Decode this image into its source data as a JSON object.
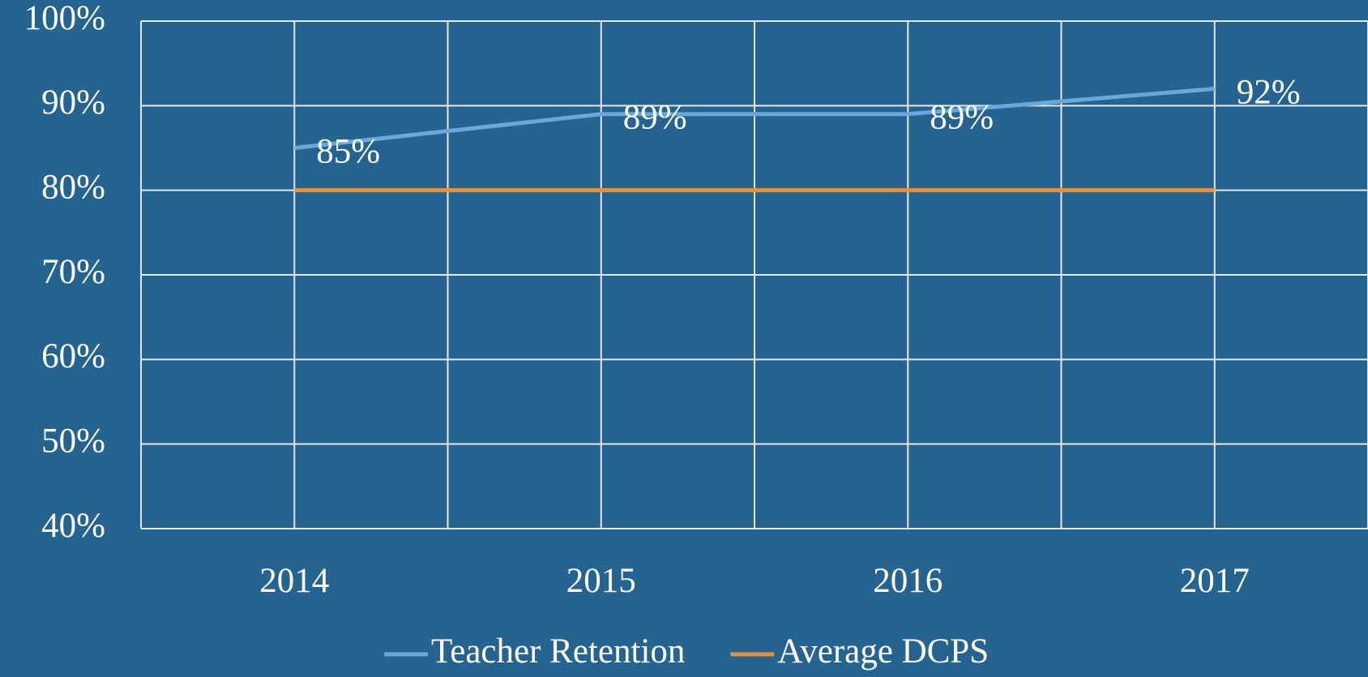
{
  "chart_data": {
    "type": "line",
    "categories": [
      "2014",
      "2015",
      "2016",
      "2017"
    ],
    "series": [
      {
        "name": "Teacher Retention",
        "color": "#6aa8dc",
        "values": [
          85,
          89,
          89,
          92
        ],
        "value_labels": [
          "85%",
          "89%",
          "89%",
          "92%"
        ]
      },
      {
        "name": "Average DCPS",
        "color": "#e8913e",
        "values": [
          80,
          80,
          80,
          80
        ]
      }
    ],
    "ylim": [
      40,
      100
    ],
    "yticks": [
      {
        "value": 40,
        "label": "40%"
      },
      {
        "value": 50,
        "label": "50%"
      },
      {
        "value": 60,
        "label": "60%"
      },
      {
        "value": 70,
        "label": "70%"
      },
      {
        "value": 80,
        "label": "80%"
      },
      {
        "value": 90,
        "label": "90%"
      },
      {
        "value": 100,
        "label": "100%"
      }
    ],
    "grid": true,
    "legend": "bottom"
  }
}
